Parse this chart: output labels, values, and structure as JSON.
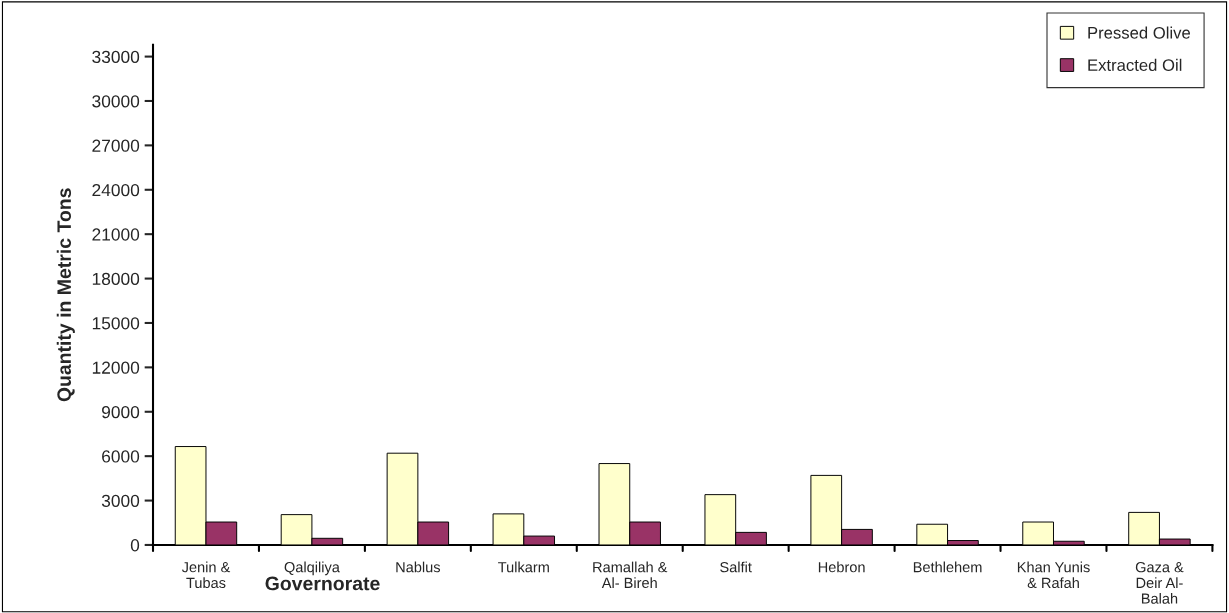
{
  "chart_data": {
    "type": "bar",
    "categories": [
      "Jenin &\nTubas",
      "Qalqiliya",
      "Nablus",
      "Tulkarm",
      "Ramallah &\nAl- Bireh",
      "Salfit",
      "Hebron",
      "Bethlehem",
      "Khan Yunis\n& Rafah",
      "Gaza &\nDeir Al-\nBalah"
    ],
    "series": [
      {
        "name": "Pressed Olive",
        "color": "#ffffcc",
        "values": [
          6650,
          2050,
          6200,
          2100,
          5500,
          3400,
          4700,
          1400,
          1550,
          2200
        ]
      },
      {
        "name": "Extracted Oil",
        "color": "#993366",
        "values": [
          1550,
          450,
          1550,
          600,
          1550,
          850,
          1050,
          300,
          250,
          400
        ]
      }
    ],
    "xlabel": "Governorate",
    "ylabel": "Quantity in Metric Tons",
    "ylim": [
      0,
      33800
    ],
    "yticks": [
      0,
      3000,
      6000,
      9000,
      12000,
      15000,
      18000,
      21000,
      24000,
      27000,
      30000,
      33000
    ],
    "grid": false,
    "legend": "top right"
  }
}
